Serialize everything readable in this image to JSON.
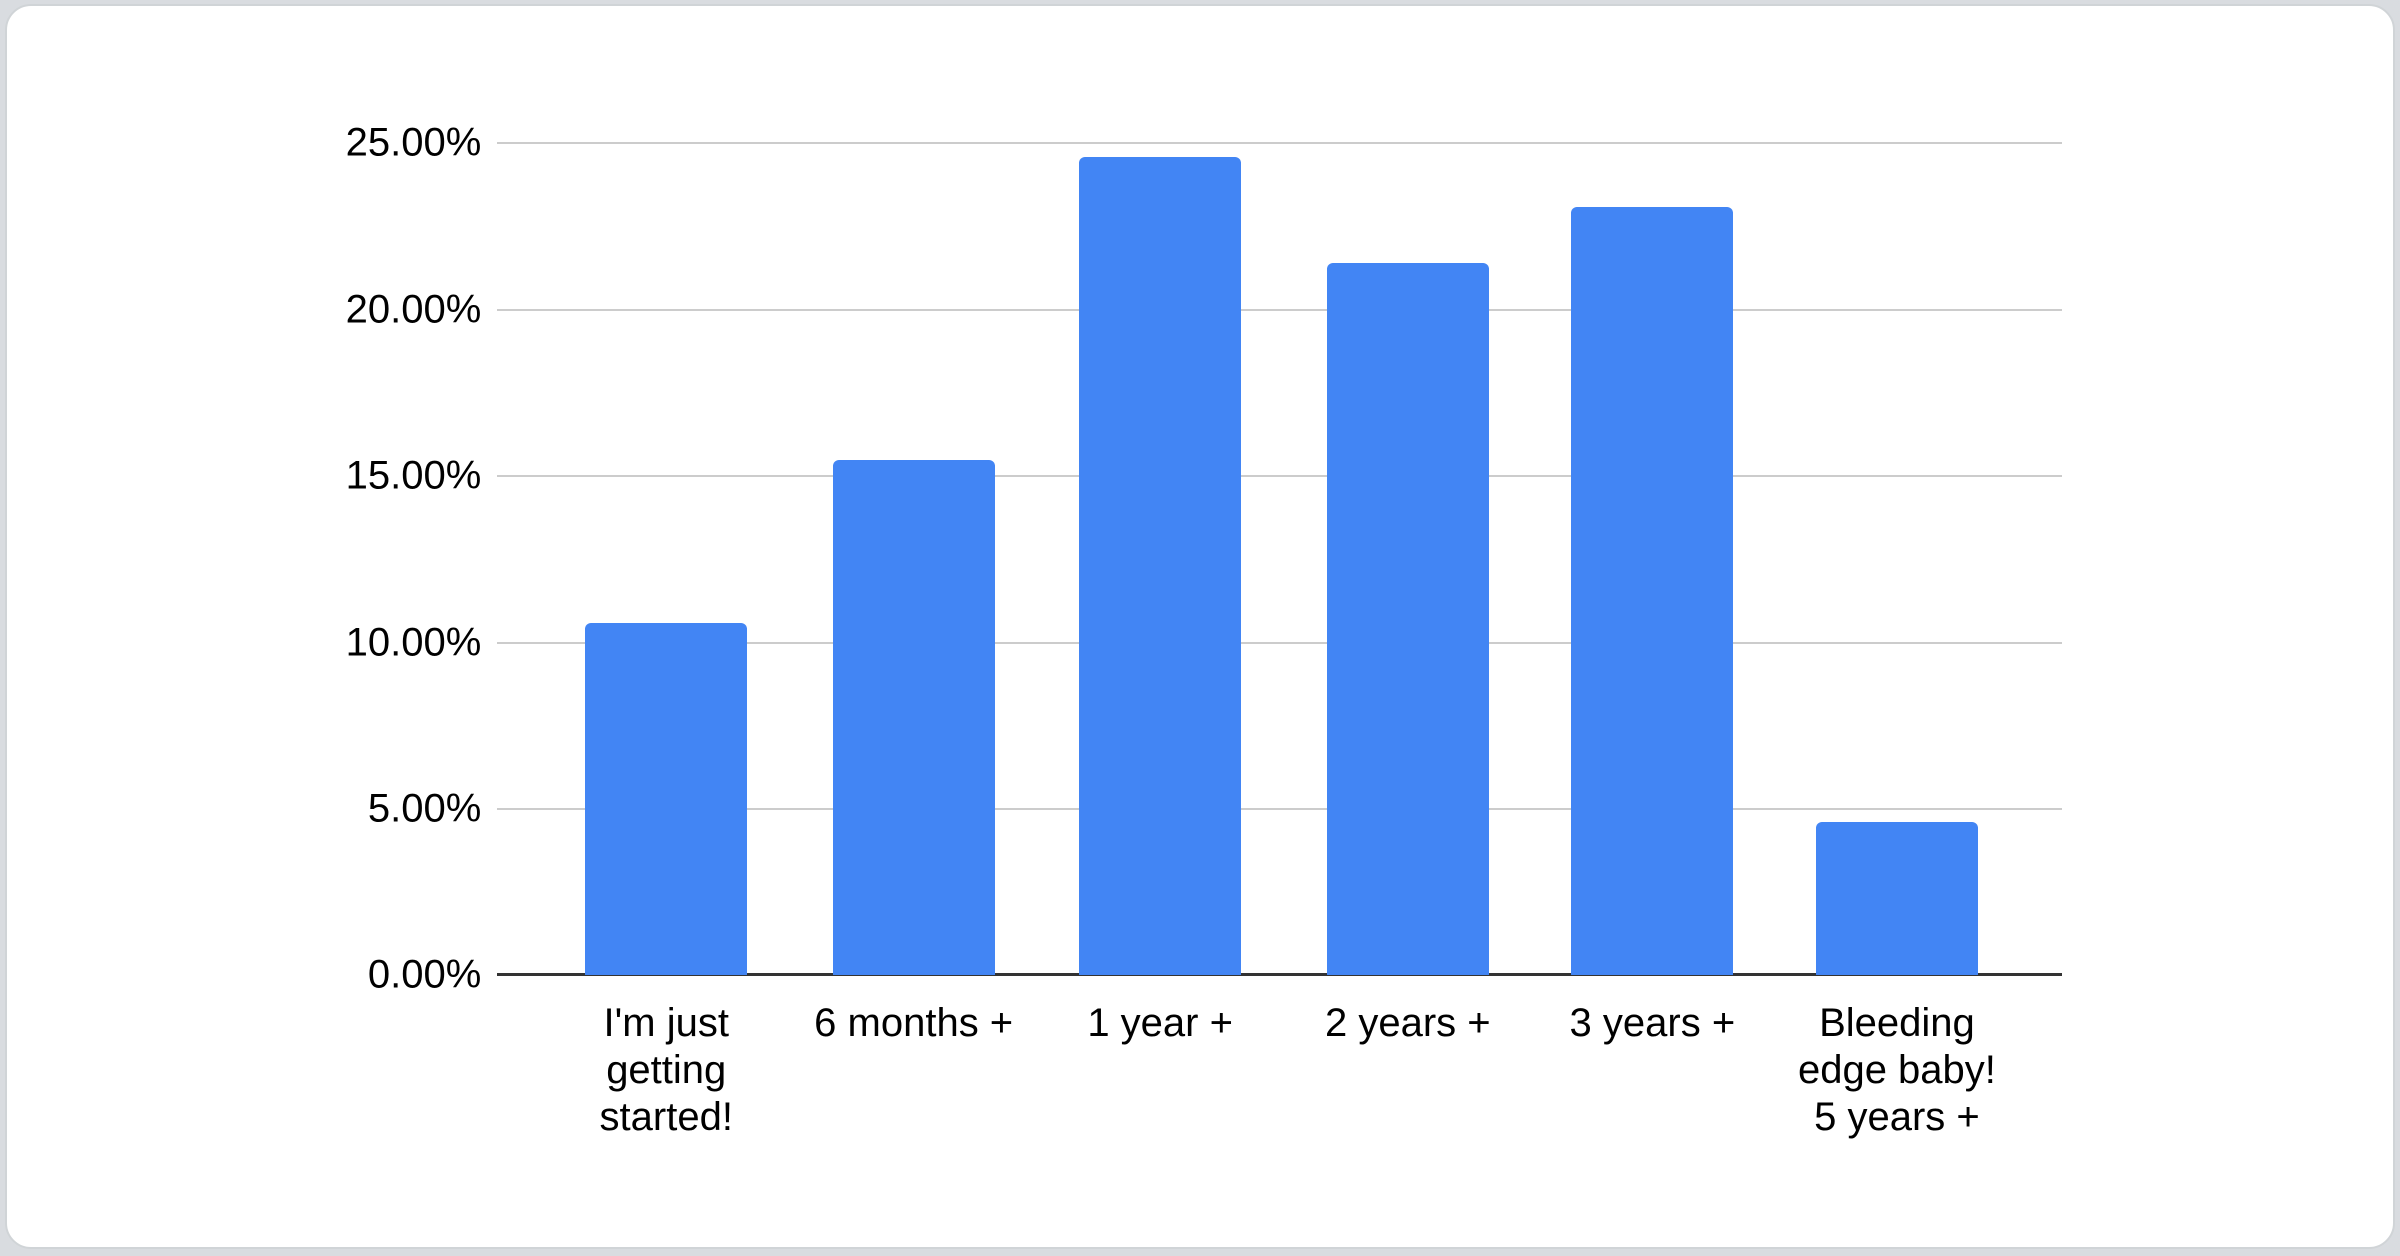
{
  "page": {
    "background_color": "#d9dce0",
    "card_background": "#ffffff",
    "card_border_color": "#d0d4d7"
  },
  "chart_data": {
    "type": "bar",
    "title": "",
    "xlabel": "",
    "ylabel": "",
    "categories": [
      "I'm just getting started!",
      "6 months +",
      "1 year +",
      "2 years +",
      "3 years +",
      "Bleeding edge baby! 5 years +"
    ],
    "category_lines": [
      [
        "I'm just",
        "getting",
        "started!"
      ],
      [
        "6 months +"
      ],
      [
        "1 year +"
      ],
      [
        "2 years +"
      ],
      [
        "3 years +"
      ],
      [
        "Bleeding",
        "edge baby!",
        "5 years +"
      ]
    ],
    "values": [
      10.6,
      15.5,
      24.6,
      21.4,
      23.1,
      4.6
    ],
    "unit": "%",
    "ylim": [
      0,
      25
    ],
    "y_tick_step": 5,
    "y_ticks": [
      "25.00%",
      "20.00%",
      "15.00%",
      "10.00%",
      "5.00%",
      "0.00%"
    ],
    "grid": true,
    "legend": "none",
    "bar_color": "#4285f4",
    "gridline_color": "#cccccc",
    "axis_line_color": "#333333",
    "label_color": "#000000"
  }
}
